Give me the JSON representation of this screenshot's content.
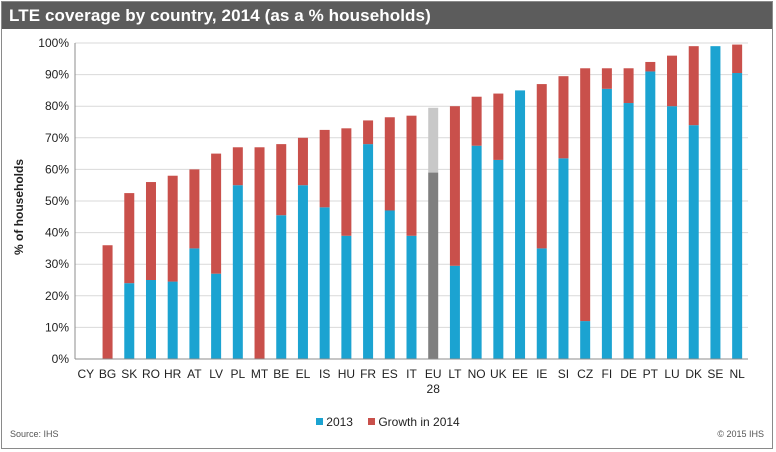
{
  "title": "LTE coverage by country, 2014 (as a % households)",
  "source": "Source: IHS",
  "copyright": "© 2015 IHS",
  "legend": {
    "base_label": "2013",
    "growth_label": "Growth in 2014"
  },
  "chart_data": {
    "type": "bar",
    "stacked": true,
    "title": "LTE coverage by country, 2014 (as a % households)",
    "ylabel": "% of households",
    "xlabel": "",
    "ylim": [
      0,
      100
    ],
    "yticks": [
      "0%",
      "10%",
      "20%",
      "30%",
      "40%",
      "50%",
      "60%",
      "70%",
      "80%",
      "90%",
      "100%"
    ],
    "grid": true,
    "legend_position": "bottom",
    "categories": [
      "CY",
      "BG",
      "SK",
      "RO",
      "HR",
      "AT",
      "LV",
      "PL",
      "MT",
      "BE",
      "EL",
      "IS",
      "HU",
      "FR",
      "ES",
      "IT",
      "EU 28",
      "LT",
      "NO",
      "UK",
      "EE",
      "IE",
      "SI",
      "CZ",
      "FI",
      "DE",
      "PT",
      "LU",
      "DK",
      "SE",
      "NL"
    ],
    "series": [
      {
        "name": "2013",
        "color": "#1ba3d1",
        "values": [
          0,
          0,
          24,
          25,
          24.5,
          35,
          27,
          55,
          0,
          45.5,
          55,
          48,
          39,
          68,
          47,
          39,
          59,
          29.5,
          67.5,
          63,
          85,
          35,
          63.5,
          12,
          85.5,
          81,
          91,
          80,
          74,
          99,
          90.5
        ]
      },
      {
        "name": "Growth in 2014",
        "color": "#c9504b",
        "values": [
          0,
          36,
          28.5,
          31,
          33.5,
          25,
          38,
          12,
          67,
          22.5,
          15,
          24.5,
          34,
          7.5,
          29.5,
          38,
          20.5,
          50.5,
          15.5,
          21,
          0,
          52,
          26,
          80,
          6.5,
          11,
          3,
          16,
          25,
          0,
          9
        ]
      }
    ],
    "highlight": {
      "category": "EU 28",
      "base_color": "#7f7f7f",
      "growth_color": "#c8c8c8"
    }
  }
}
